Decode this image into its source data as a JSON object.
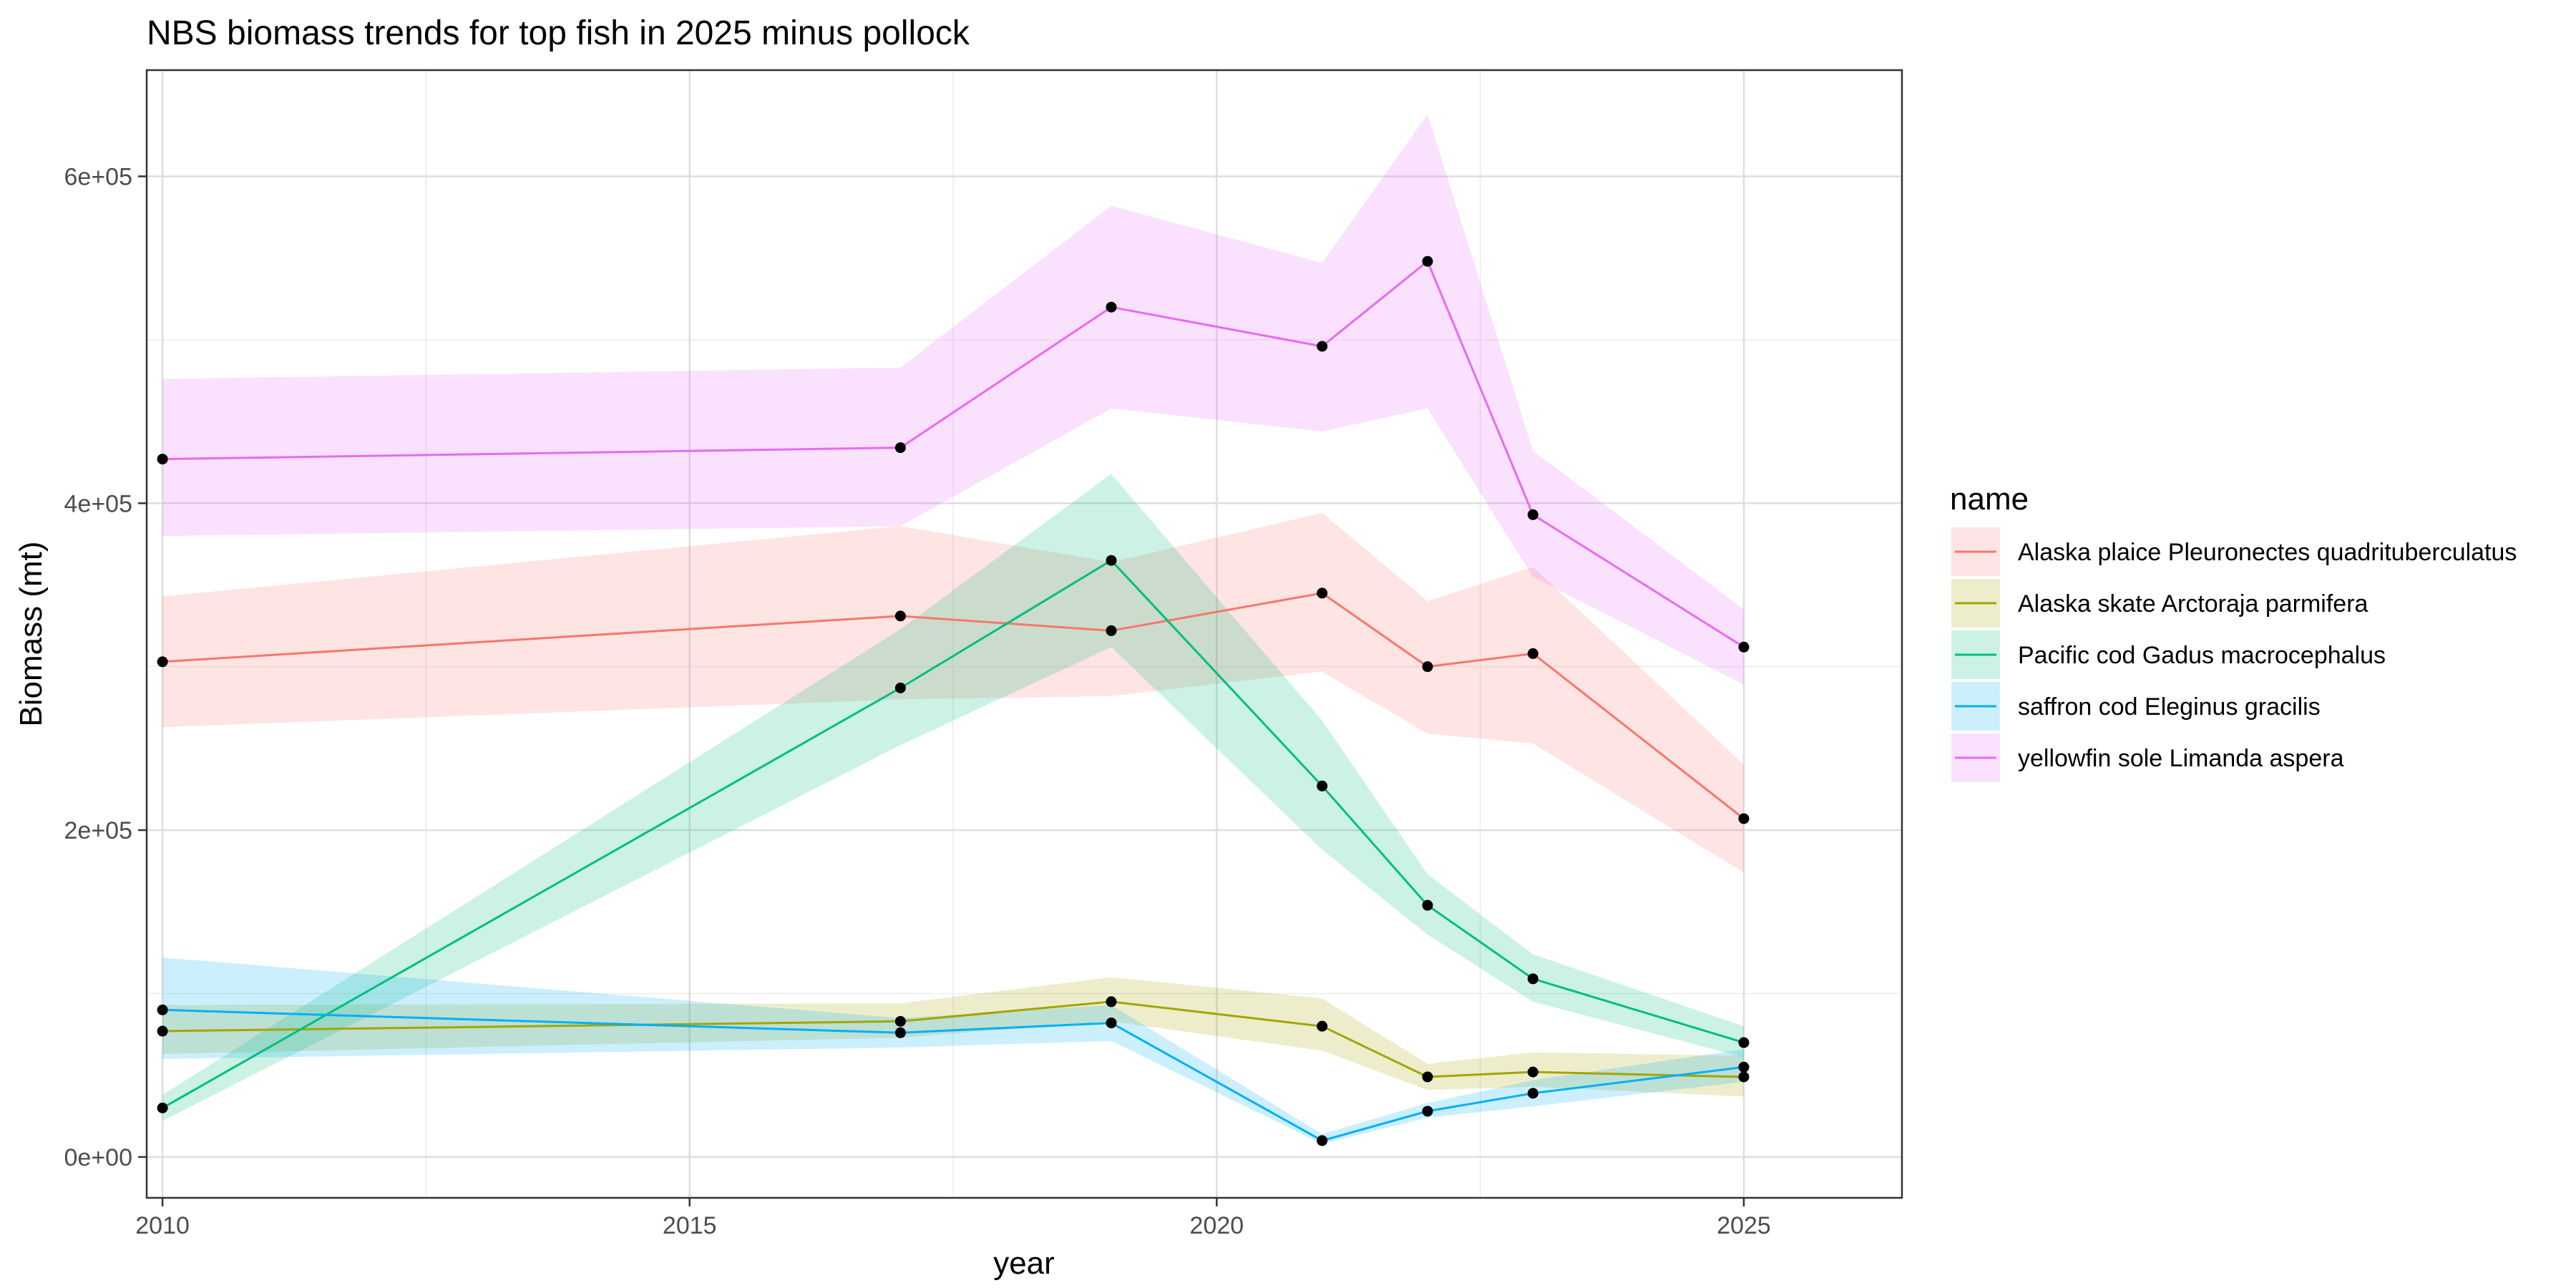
{
  "chart_data": {
    "type": "line",
    "title": "NBS biomass trends for top fish in 2025 minus pollock",
    "xlabel": "year",
    "ylabel": "Biomass (mt)",
    "xlim": [
      2009.85,
      2026.5
    ],
    "ylim": [
      -25000,
      665000
    ],
    "x_ticks": [
      2010,
      2015,
      2020,
      2025
    ],
    "x_tick_labels": [
      "2010",
      "2015",
      "2020",
      "2025"
    ],
    "y_ticks": [
      0,
      200000,
      400000,
      600000
    ],
    "y_tick_labels": [
      "0e+00",
      "2e+05",
      "4e+05",
      "6e+05"
    ],
    "grid": true,
    "legend": {
      "title": "name",
      "position": "right"
    },
    "years": [
      2010,
      2017,
      2019,
      2021,
      2022,
      2023,
      2025
    ],
    "series": [
      {
        "name": "Alaska plaice Pleuronectes quadrituberculatus",
        "color": "#F8766D",
        "values": [
          303000,
          331000,
          322000,
          345000,
          300000,
          308000,
          207000
        ],
        "lower": [
          263000,
          280000,
          282000,
          297000,
          259000,
          253000,
          174000
        ],
        "upper": [
          343000,
          386000,
          364000,
          394000,
          340000,
          361000,
          240000
        ]
      },
      {
        "name": "Alaska skate Arctoraja parmifera",
        "color": "#A3A500",
        "values": [
          77000,
          83000,
          95000,
          80000,
          49000,
          52000,
          49000
        ],
        "lower": [
          63000,
          73000,
          83000,
          65000,
          41000,
          43000,
          37000
        ],
        "upper": [
          93000,
          94000,
          110000,
          97000,
          57000,
          64000,
          62000
        ]
      },
      {
        "name": "Pacific cod Gadus macrocephalus",
        "color": "#00BF7D",
        "values": [
          30000,
          287000,
          365000,
          227000,
          154000,
          109000,
          70000
        ],
        "lower": [
          22000,
          252000,
          312000,
          188000,
          136000,
          95000,
          61000
        ],
        "upper": [
          38000,
          323000,
          418000,
          267000,
          173000,
          124000,
          80000
        ]
      },
      {
        "name": "saffron cod Eleginus gracilis",
        "color": "#00B0F6",
        "values": [
          90000,
          76000,
          82000,
          10000,
          28000,
          39000,
          55000
        ],
        "lower": [
          60000,
          67000,
          71000,
          8000,
          24000,
          31000,
          46000
        ],
        "upper": [
          122000,
          85000,
          93000,
          14000,
          33000,
          47000,
          66000
        ]
      },
      {
        "name": "yellowfin sole Limanda aspera",
        "color": "#E76BF3",
        "values": [
          427000,
          434000,
          520000,
          496000,
          548000,
          393000,
          312000
        ],
        "lower": [
          380000,
          386000,
          458000,
          444000,
          458000,
          355000,
          289000
        ],
        "upper": [
          476000,
          483000,
          582000,
          547000,
          638000,
          432000,
          335000
        ]
      }
    ]
  }
}
